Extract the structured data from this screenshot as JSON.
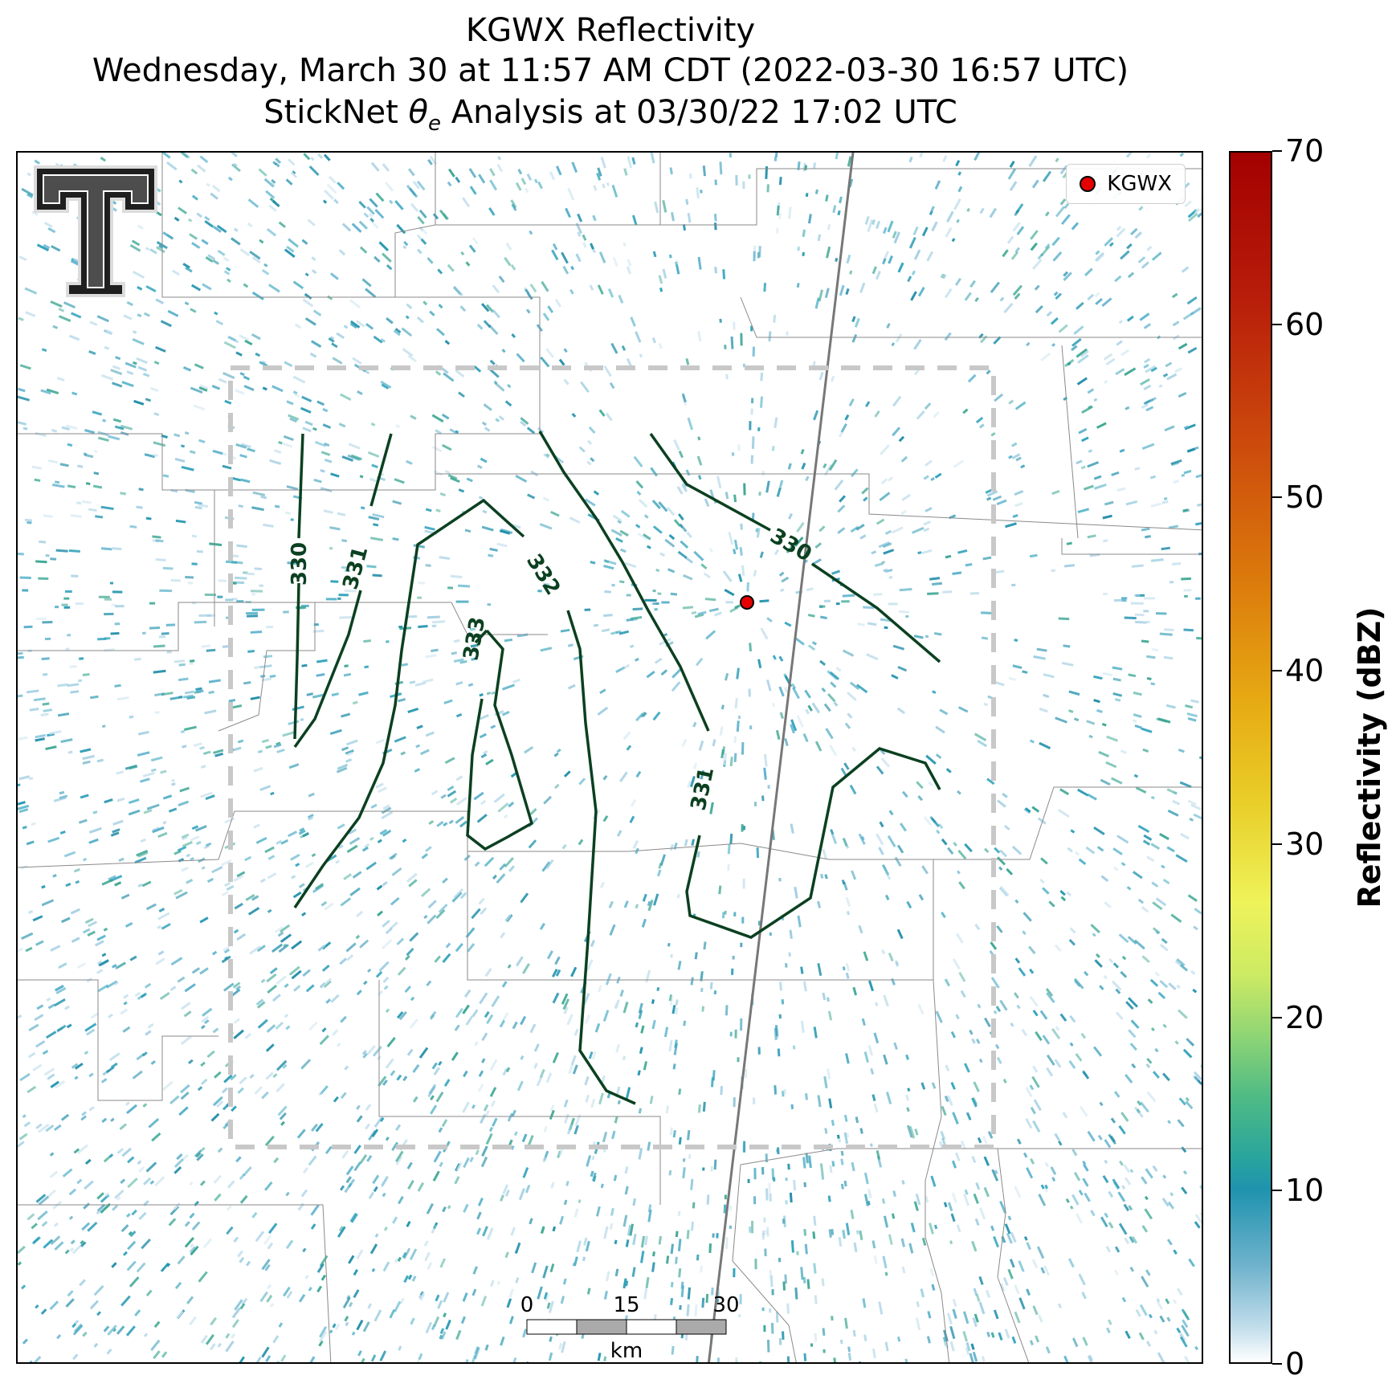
{
  "title": {
    "line1": "KGWX Reflectivity",
    "line2": "Wednesday, March 30 at 11:57 AM CDT (2022-03-30 16:57 UTC)",
    "line3": "StickNet θe Analysis at 03/30/22 17:02 UTC"
  },
  "legend": {
    "label": "KGWX",
    "marker_color": "#e50000"
  },
  "colorbar": {
    "title": "Reflectivity (dBZ)",
    "ticks": [
      "0",
      "10",
      "20",
      "30",
      "40",
      "50",
      "60",
      "70"
    ]
  },
  "contours": {
    "color": "#0b4020",
    "labels": [
      "330",
      "331",
      "332",
      "333",
      "330",
      "331"
    ]
  },
  "scale_bar": {
    "ticks": [
      "0",
      "15",
      "30"
    ],
    "unit": "km"
  },
  "analysis_box": {
    "color": "#c8c8c8",
    "style": "dashed"
  },
  "logo": {
    "text": "T"
  }
}
